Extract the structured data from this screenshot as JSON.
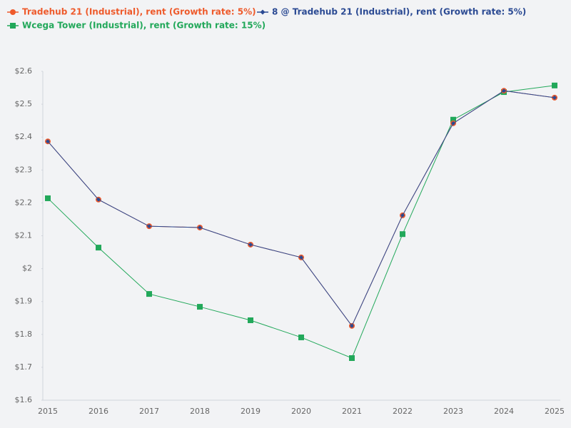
{
  "chart_data": {
    "type": "line",
    "categories": [
      "2015",
      "2016",
      "2017",
      "2018",
      "2019",
      "2020",
      "2021",
      "2022",
      "2023",
      "2024",
      "2025"
    ],
    "series": [
      {
        "name": "Tradehub 21 (Industrial), rent (Growth rate: 5%)",
        "color": "#ee5a2b",
        "marker": "circle",
        "values": [
          2.387,
          2.21,
          2.129,
          2.125,
          2.073,
          2.034,
          1.826,
          2.162,
          2.442,
          2.541,
          2.52
        ]
      },
      {
        "name": "8 @ Tradehub 21 (Industrial), rent (Growth rate: 5%)",
        "color": "#2b4a93",
        "marker": "diamond",
        "values": [
          2.387,
          2.21,
          2.129,
          2.125,
          2.073,
          2.034,
          1.826,
          2.162,
          2.442,
          2.541,
          2.52
        ]
      },
      {
        "name": "Wcega Tower (Industrial), rent (Growth rate: 15%)",
        "color": "#22a85a",
        "marker": "square",
        "values": [
          2.214,
          2.064,
          1.923,
          1.884,
          1.843,
          1.791,
          1.728,
          2.105,
          2.453,
          2.537,
          2.557
        ]
      }
    ],
    "ylim": [
      1.6,
      2.6
    ],
    "yticks": [
      {
        "value": 1.6,
        "label": "$1.6"
      },
      {
        "value": 1.7,
        "label": "$1.7"
      },
      {
        "value": 1.8,
        "label": "$1.8"
      },
      {
        "value": 1.9,
        "label": "$1.9"
      },
      {
        "value": 2,
        "label": "$2"
      },
      {
        "value": 2.1,
        "label": "$2.1"
      },
      {
        "value": 2.2,
        "label": "$2.2"
      },
      {
        "value": 2.3,
        "label": "$2.3"
      },
      {
        "value": 2.4,
        "label": "$2.4"
      },
      {
        "value": 2.5,
        "label": "$2.5"
      },
      {
        "value": 2.6,
        "label": "$2.6"
      }
    ],
    "grid": false
  }
}
